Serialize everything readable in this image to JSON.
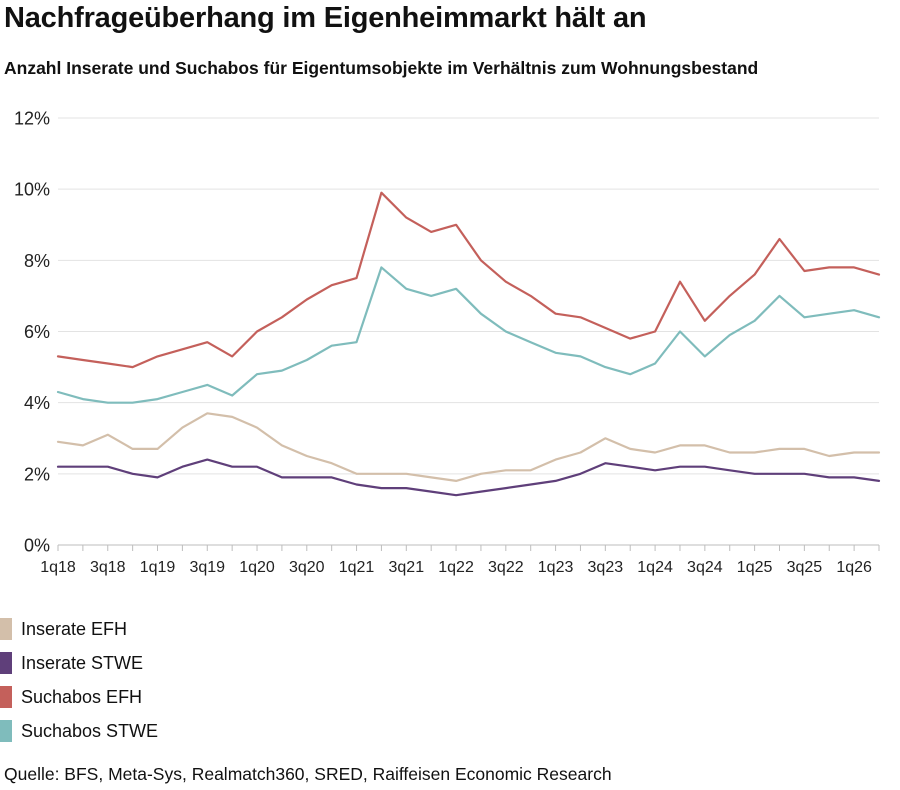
{
  "title": "Nachfrageüberhang im Eigenheimmarkt hält an",
  "subtitle": "Anzahl Inserate und Suchabos für Eigentumsobjekte im Verhältnis zum Wohnungsbestand",
  "source": "Quelle: BFS, Meta-Sys, Realmatch360, SRED, Raiffeisen Economic Research",
  "chart_data": {
    "type": "line",
    "title": "Nachfrageüberhang im Eigenheimmarkt hält an",
    "subtitle": "Anzahl Inserate und Suchabos für Eigentumsobjekte im Verhältnis zum Wohnungsbestand",
    "xlabel": "",
    "ylabel": "",
    "ylim": [
      0,
      12
    ],
    "yticks": [
      0,
      2,
      4,
      6,
      8,
      10,
      12
    ],
    "ytick_labels": [
      "0%",
      "2%",
      "4%",
      "6%",
      "8%",
      "10%",
      "12%"
    ],
    "grid": "horizontal",
    "legend_position": "bottom-left",
    "x": [
      "1q18",
      "2q18",
      "3q18",
      "4q18",
      "1q19",
      "2q19",
      "3q19",
      "4q19",
      "1q20",
      "2q20",
      "3q20",
      "4q20",
      "1q21",
      "2q21",
      "3q21",
      "4q21",
      "1q22",
      "2q22",
      "3q22",
      "4q22",
      "1q23",
      "2q23",
      "3q23",
      "4q23",
      "1q24",
      "2q24",
      "3q24",
      "4q24",
      "1q25",
      "2q25",
      "3q25",
      "4q25",
      "1q26",
      "2q26"
    ],
    "xtick_labels": [
      "1q18",
      "3q18",
      "1q19",
      "3q19",
      "1q20",
      "3q20",
      "1q21",
      "3q21",
      "1q22",
      "3q22",
      "1q23",
      "3q23",
      "1q24",
      "3q24",
      "1q25",
      "3q25",
      "1q26"
    ],
    "series": [
      {
        "name": "Inserate EFH",
        "color": "#d3bfaa",
        "values": [
          2.9,
          2.8,
          3.1,
          2.7,
          2.7,
          3.3,
          3.7,
          3.6,
          3.3,
          2.8,
          2.5,
          2.3,
          2.0,
          2.0,
          2.0,
          1.9,
          1.8,
          2.0,
          2.1,
          2.1,
          2.4,
          2.6,
          3.0,
          2.7,
          2.6,
          2.8,
          2.8,
          2.6,
          2.6,
          2.7,
          2.7,
          2.5,
          2.6,
          2.6
        ]
      },
      {
        "name": "Inserate STWE",
        "color": "#5f3f7a",
        "values": [
          2.2,
          2.2,
          2.2,
          2.0,
          1.9,
          2.2,
          2.4,
          2.2,
          2.2,
          1.9,
          1.9,
          1.9,
          1.7,
          1.6,
          1.6,
          1.5,
          1.4,
          1.5,
          1.6,
          1.7,
          1.8,
          2.0,
          2.3,
          2.2,
          2.1,
          2.2,
          2.2,
          2.1,
          2.0,
          2.0,
          2.0,
          1.9,
          1.9,
          1.8
        ]
      },
      {
        "name": "Suchabos EFH",
        "color": "#c4605b",
        "values": [
          5.3,
          5.2,
          5.1,
          5.0,
          5.3,
          5.5,
          5.7,
          5.3,
          6.0,
          6.4,
          6.9,
          7.3,
          7.5,
          9.9,
          9.2,
          8.8,
          9.0,
          8.0,
          7.4,
          7.0,
          6.5,
          6.4,
          6.1,
          5.8,
          6.0,
          7.4,
          6.3,
          7.0,
          7.6,
          8.6,
          7.7,
          7.8,
          7.8,
          7.6
        ]
      },
      {
        "name": "Suchabos STWE",
        "color": "#7fbcbc",
        "values": [
          4.3,
          4.1,
          4.0,
          4.0,
          4.1,
          4.3,
          4.5,
          4.2,
          4.8,
          4.9,
          5.2,
          5.6,
          5.7,
          7.8,
          7.2,
          7.0,
          7.2,
          6.5,
          6.0,
          5.7,
          5.4,
          5.3,
          5.0,
          4.8,
          5.1,
          6.0,
          5.3,
          5.9,
          6.3,
          7.0,
          6.4,
          6.5,
          6.6,
          6.4
        ]
      }
    ]
  }
}
